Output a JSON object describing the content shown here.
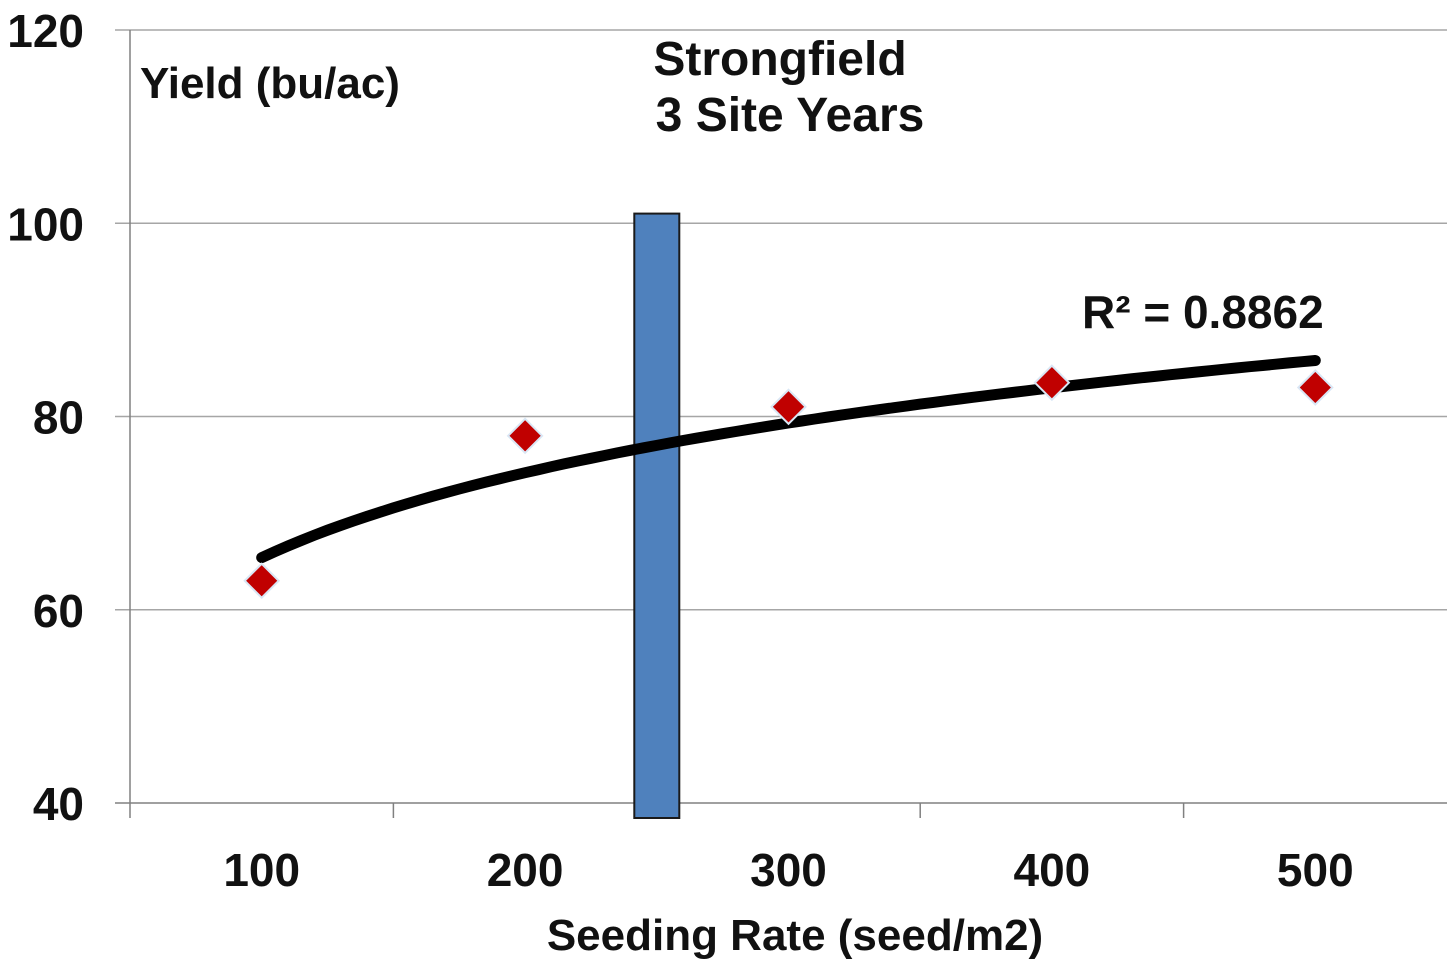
{
  "chart_data": {
    "type": "scatter",
    "title": "Strongfield",
    "subtitle": "3 Site Years",
    "xlabel": "Seeding Rate (seed/m2)",
    "ylabel": "Yield (bu/ac)",
    "x_ticks": [
      "100",
      "200",
      "300",
      "400",
      "500"
    ],
    "y_ticks": [
      "40",
      "60",
      "80",
      "100",
      "120"
    ],
    "xlim": [
      50,
      550
    ],
    "ylim": [
      40,
      120
    ],
    "grid": true,
    "series": [
      {
        "x": [
          100,
          200,
          300,
          400,
          500
        ],
        "values": [
          63,
          78,
          81,
          83.5,
          83
        ],
        "color": "#c00000",
        "marker": "diamond"
      }
    ],
    "trendline": {
      "type": "logarithmic",
      "x_range": [
        100,
        500
      ],
      "start_value": 65.4,
      "end_value": 85.8,
      "color": "#000000"
    },
    "r_squared_label": "R² = 0.8862",
    "highlight_bar": {
      "x": 250,
      "top": 101,
      "color": "#4f81bd"
    }
  }
}
